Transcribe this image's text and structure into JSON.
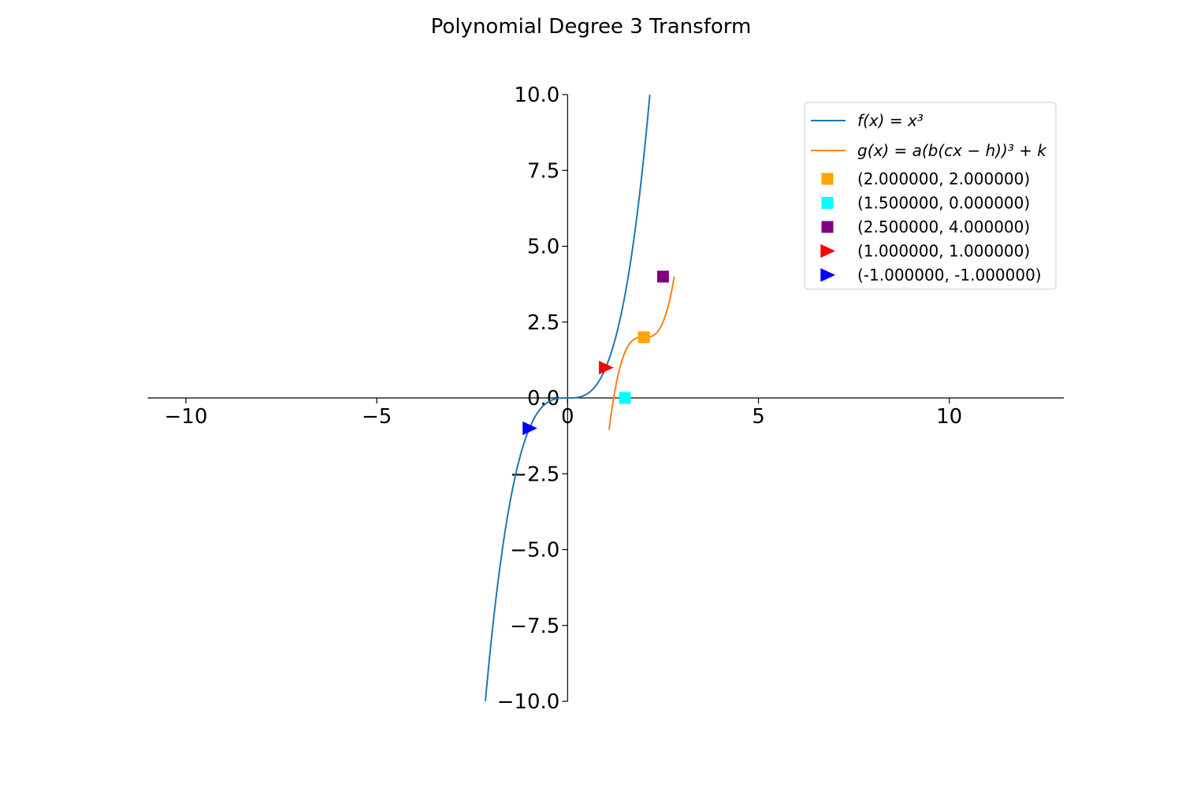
{
  "chart_data": {
    "type": "line",
    "title": "Polynomial Degree 3 Transform",
    "xlim": [
      -11,
      13
    ],
    "ylim": [
      -10,
      10
    ],
    "x_ticks": [
      -10,
      -5,
      0,
      5,
      10
    ],
    "x_tick_labels": [
      "−10",
      "−5",
      "0",
      "5",
      "10"
    ],
    "y_ticks": [
      -10,
      -7.5,
      -5,
      -2.5,
      0,
      2.5,
      5,
      7.5,
      10
    ],
    "y_tick_labels": [
      "−10.0",
      "−7.5",
      "−5.0",
      "−2.5",
      "0.0",
      "2.5",
      "5.0",
      "7.5",
      "10.0"
    ],
    "grid": false,
    "spines": "centered",
    "legend_position": "upper-right",
    "series": [
      {
        "name": "f(x) = x^3",
        "legend_label": "f(x) = x³",
        "color": "#1f77b4",
        "function": "x^3",
        "x_range": [
          -2.154,
          2.154
        ]
      },
      {
        "name": "g(x) = a(b(cx − h))^3 + k",
        "legend_label": "g(x) = a(b(cx − h))³ + k",
        "color": "#ff7f0e",
        "function": "4*(x-2)^3+2",
        "x_range": [
          1.0863,
          2.7937
        ]
      }
    ],
    "points": [
      {
        "label": "(2.000000, 2.000000)",
        "x": 2.0,
        "y": 2.0,
        "marker": "square",
        "color": "#ffa500"
      },
      {
        "label": "(1.500000, 0.000000)",
        "x": 1.5,
        "y": 0.0,
        "marker": "square",
        "color": "#00ffff"
      },
      {
        "label": "(2.500000, 4.000000)",
        "x": 2.5,
        "y": 4.0,
        "marker": "square",
        "color": "#800080"
      },
      {
        "label": "(1.000000, 1.000000)",
        "x": 1.0,
        "y": 1.0,
        "marker": "triangle-right",
        "color": "#ff0000"
      },
      {
        "label": "(-1.000000, -1.000000)",
        "x": -1.0,
        "y": -1.0,
        "marker": "triangle-right",
        "color": "#0000ff"
      }
    ]
  }
}
